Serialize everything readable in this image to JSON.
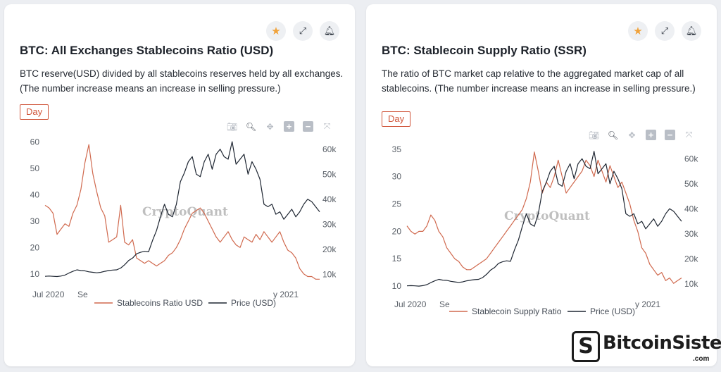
{
  "cards": [
    {
      "title": "BTC: All Exchanges Stablecoins Ratio (USD)",
      "description": "BTC reserve(USD) divided by all stablecoins reserves held by all exchanges. (The number increase means an increase in selling pressure.)",
      "period": "Day",
      "watermark": "CryptoQuant",
      "actions": {
        "star_icon": "star-icon",
        "expand_icon": "expand-icon",
        "bell_icon": "bell-icon"
      }
    },
    {
      "title": "BTC: Stablecoin Supply Ratio (SSR)",
      "description": "The ratio of BTC market cap relative to the aggregated market cap of all stablecoins. (The number increase means an increase in selling pressure.)",
      "period": "Day",
      "watermark": "CryptoQuant",
      "actions": {
        "star_icon": "star-icon",
        "expand_icon": "expand-icon",
        "bell_icon": "bell-icon"
      }
    }
  ],
  "modebar": [
    "camera-icon",
    "zoom-icon",
    "pan-icon",
    "zoom-in-icon",
    "zoom-out-icon",
    "autoscale-icon"
  ],
  "colors": {
    "ratio": "#d0694e",
    "price": "#1e2632",
    "accent": "#d0553a",
    "star": "#f0a23a"
  },
  "brand": {
    "name": "BitcoinSistemi",
    "suffix": ".com"
  },
  "chart_data": [
    {
      "type": "line",
      "x_tick_labels": [
        "Jul 2020",
        "Se",
        "y 2021"
      ],
      "y_left_ticks": [
        "60",
        "50",
        "40",
        "30",
        "20",
        "10"
      ],
      "y_right_ticks": [
        "60k",
        "50k",
        "40k",
        "30k",
        "20k",
        "10k"
      ],
      "ylim_left": [
        7,
        62
      ],
      "ylim_right": [
        7000,
        65000
      ],
      "legend": [
        "Stablecoins Ratio USD",
        "Price (USD)"
      ],
      "series": [
        {
          "name": "Stablecoins Ratio USD",
          "axis": "left",
          "values": [
            36,
            35,
            33,
            25,
            27,
            29,
            28,
            33,
            36,
            42,
            52,
            59,
            48,
            41,
            35,
            32,
            22,
            23,
            24,
            36,
            22,
            21,
            23,
            16,
            15,
            14,
            15,
            14,
            13,
            14,
            15,
            17,
            18,
            20,
            23,
            27,
            30,
            33,
            34,
            35,
            33,
            30,
            27,
            24,
            22,
            24,
            26,
            23,
            21,
            20,
            24,
            23,
            22,
            25,
            23,
            26,
            24,
            22,
            24,
            26,
            22,
            19,
            18,
            16,
            12,
            10,
            9,
            9,
            8,
            8
          ]
        },
        {
          "name": "Price (USD)",
          "axis": "right",
          "values": [
            9200,
            9300,
            9200,
            9100,
            9300,
            9700,
            10500,
            11200,
            11800,
            11500,
            11400,
            11000,
            10800,
            10600,
            10800,
            11200,
            11500,
            11700,
            11800,
            12500,
            13800,
            15500,
            16500,
            18200,
            18800,
            19200,
            19000,
            23500,
            27500,
            33000,
            38000,
            34000,
            33000,
            38000,
            47000,
            50500,
            55000,
            57000,
            50000,
            49000,
            55000,
            58000,
            52000,
            58000,
            60000,
            57000,
            56000,
            63000,
            54000,
            56000,
            58000,
            50000,
            55000,
            52000,
            48000,
            38000,
            37000,
            38000,
            34000,
            35000,
            32000,
            34000,
            36000,
            33000,
            35000,
            38000,
            40000,
            39000,
            37000,
            35000
          ]
        }
      ]
    },
    {
      "type": "line",
      "x_tick_labels": [
        "Jul 2020",
        "Se",
        "y 2021"
      ],
      "y_left_ticks": [
        "35",
        "30",
        "25",
        "20",
        "15",
        "10"
      ],
      "y_right_ticks": [
        "60k",
        "50k",
        "40k",
        "30k",
        "20k",
        "10k"
      ],
      "ylim_left": [
        9.5,
        36
      ],
      "ylim_right": [
        8000,
        66000
      ],
      "legend": [
        "Stablecoin Supply Ratio",
        "Price (USD)"
      ],
      "series": [
        {
          "name": "Stablecoin Supply Ratio",
          "axis": "left",
          "values": [
            21,
            20,
            19.5,
            20,
            20,
            21,
            23,
            22,
            20,
            19,
            17,
            16,
            15,
            14.5,
            13.5,
            13,
            13,
            13.5,
            14,
            14.5,
            15,
            16,
            17,
            18,
            19,
            20,
            21,
            22,
            23,
            24,
            26,
            29,
            34.5,
            31,
            27,
            29,
            28,
            30,
            33,
            30,
            27,
            28,
            29,
            30,
            31,
            33,
            32,
            30,
            33,
            31,
            29,
            32,
            30,
            28,
            29,
            27,
            25,
            22,
            20,
            17,
            16,
            14,
            13,
            12,
            12.5,
            11,
            11.5,
            10.5,
            11,
            11.5
          ]
        },
        {
          "name": "Price (USD)",
          "axis": "right",
          "values": [
            9200,
            9300,
            9200,
            9100,
            9300,
            9700,
            10500,
            11200,
            11800,
            11500,
            11400,
            11000,
            10800,
            10600,
            10800,
            11200,
            11500,
            11700,
            11800,
            12500,
            13800,
            15500,
            16500,
            18200,
            18800,
            19200,
            19000,
            23500,
            27500,
            33000,
            38000,
            34000,
            33000,
            38000,
            47000,
            50500,
            55000,
            57000,
            50000,
            49000,
            55000,
            58000,
            52000,
            58000,
            60000,
            57000,
            56000,
            63000,
            54000,
            56000,
            58000,
            50000,
            55000,
            52000,
            48000,
            38000,
            37000,
            38000,
            34000,
            35000,
            32000,
            34000,
            36000,
            33000,
            35000,
            38000,
            40000,
            39000,
            37000,
            35000
          ]
        }
      ]
    }
  ]
}
